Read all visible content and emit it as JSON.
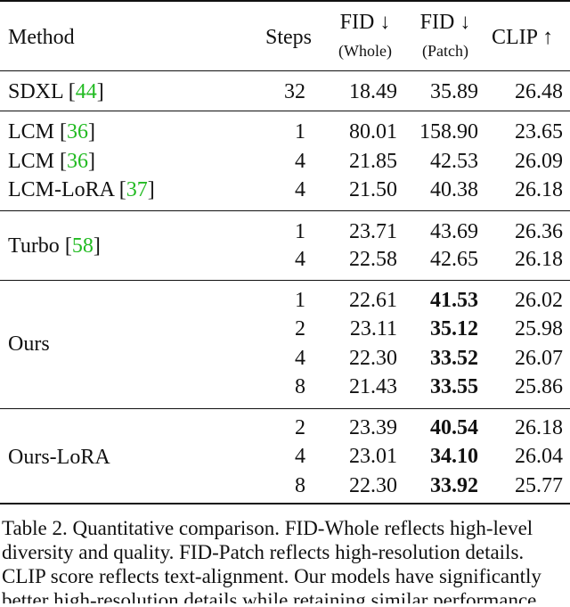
{
  "table": {
    "header": {
      "method": "Method",
      "steps": "Steps",
      "fid_whole": "FID ↓",
      "fid_whole_sub": "(Whole)",
      "fid_patch": "FID ↓",
      "fid_patch_sub": "(Patch)",
      "clip": "CLIP ↑"
    },
    "groups": [
      {
        "rows": [
          {
            "method": "SDXL",
            "ref": "44",
            "steps": "32",
            "fid_whole": "18.49",
            "fid_patch": "35.89",
            "clip": "26.48",
            "bold": false
          }
        ]
      },
      {
        "rows": [
          {
            "method": "LCM",
            "ref": "36",
            "steps": "1",
            "fid_whole": "80.01",
            "fid_patch": "158.90",
            "clip": "23.65",
            "bold": false
          },
          {
            "method": "LCM",
            "ref": "36",
            "steps": "4",
            "fid_whole": "21.85",
            "fid_patch": "42.53",
            "clip": "26.09",
            "bold": false
          },
          {
            "method": "LCM-LoRA",
            "ref": "37",
            "steps": "4",
            "fid_whole": "21.50",
            "fid_patch": "40.38",
            "clip": "26.18",
            "bold": false
          }
        ]
      },
      {
        "label": "Turbo",
        "ref": "58",
        "rows": [
          {
            "steps": "1",
            "fid_whole": "23.71",
            "fid_patch": "43.69",
            "clip": "26.36",
            "bold": false
          },
          {
            "steps": "4",
            "fid_whole": "22.58",
            "fid_patch": "42.65",
            "clip": "26.18",
            "bold": false
          }
        ]
      },
      {
        "label": "Ours",
        "rows": [
          {
            "steps": "1",
            "fid_whole": "22.61",
            "fid_patch": "41.53",
            "clip": "26.02",
            "bold": true
          },
          {
            "steps": "2",
            "fid_whole": "23.11",
            "fid_patch": "35.12",
            "clip": "25.98",
            "bold": true
          },
          {
            "steps": "4",
            "fid_whole": "22.30",
            "fid_patch": "33.52",
            "clip": "26.07",
            "bold": true
          },
          {
            "steps": "8",
            "fid_whole": "21.43",
            "fid_patch": "33.55",
            "clip": "25.86",
            "bold": true
          }
        ]
      },
      {
        "label": "Ours-LoRA",
        "rows": [
          {
            "steps": "2",
            "fid_whole": "23.39",
            "fid_patch": "40.54",
            "clip": "26.18",
            "bold": true
          },
          {
            "steps": "4",
            "fid_whole": "23.01",
            "fid_patch": "34.10",
            "clip": "26.04",
            "bold": true
          },
          {
            "steps": "8",
            "fid_whole": "22.30",
            "fid_patch": "33.92",
            "clip": "25.77",
            "bold": true
          }
        ]
      }
    ]
  },
  "caption": {
    "lines": [
      "Table 2. Quantitative comparison. FID-Whole reflects high-level",
      "diversity and quality.  FID-Patch reflects high-resolution details.",
      "CLIP score reflects text-alignment. Our models have significantly",
      "better high-resolution details while retaining similar performance"
    ]
  }
}
